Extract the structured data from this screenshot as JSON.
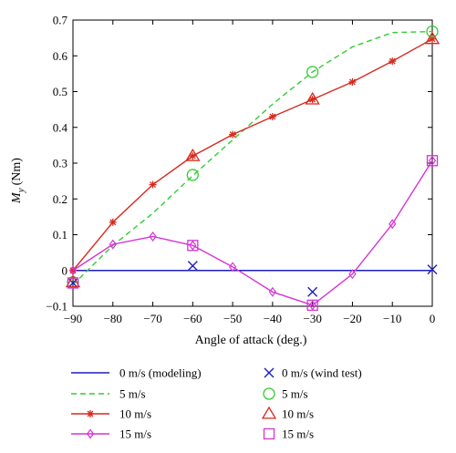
{
  "chart_data": {
    "type": "line",
    "xlabel": "Angle of attack (deg.)",
    "ylabel_main": "M",
    "ylabel_sub": "y",
    "ylabel_unit": "(Nm)",
    "xlim": [
      -90,
      0
    ],
    "ylim": [
      -0.1,
      0.7
    ],
    "xticks": [
      -90,
      -80,
      -70,
      -60,
      -50,
      -40,
      -30,
      -20,
      -10,
      0
    ],
    "yticks": [
      -0.1,
      0,
      0.1,
      0.2,
      0.3,
      0.4,
      0.5,
      0.6,
      0.7
    ],
    "ytick_labels": [
      "−0.1",
      "0",
      "0.1",
      "0.2",
      "0.3",
      "0.4",
      "0.5",
      "0.6",
      "0.7"
    ],
    "xtick_labels": [
      "−90",
      "−80",
      "−70",
      "−60",
      "−50",
      "−40",
      "−30",
      "−20",
      "−10",
      "0"
    ],
    "grid": false,
    "legend_placement": "below",
    "series": [
      {
        "name": "0 m/s (modeling)",
        "kind": "line",
        "style": "solid",
        "marker": "none",
        "color": "#1f1fbf",
        "x": [
          -90,
          -80,
          -70,
          -60,
          -50,
          -40,
          -30,
          -20,
          -10,
          0
        ],
        "y": [
          0,
          0,
          0,
          0,
          0,
          0,
          0,
          0,
          0,
          0
        ]
      },
      {
        "name": "5 m/s",
        "kind": "line",
        "style": "dashed",
        "marker": "none",
        "color": "#33cc33",
        "x": [
          -90,
          -80,
          -70,
          -60,
          -50,
          -40,
          -30,
          -20,
          -10,
          0
        ],
        "y": [
          -0.04,
          0.07,
          0.16,
          0.265,
          0.365,
          0.465,
          0.555,
          0.625,
          0.665,
          0.668
        ]
      },
      {
        "name": "10 m/s",
        "kind": "line",
        "style": "solid",
        "marker": "star",
        "color": "#d62a1e",
        "x": [
          -90,
          -80,
          -70,
          -60,
          -50,
          -40,
          -30,
          -20,
          -10,
          0
        ],
        "y": [
          0,
          0.135,
          0.24,
          0.32,
          0.38,
          0.43,
          0.478,
          0.527,
          0.585,
          0.647
        ]
      },
      {
        "name": "15 m/s",
        "kind": "line",
        "style": "solid",
        "marker": "diamond",
        "color": "#d633d6",
        "x": [
          -90,
          -80,
          -70,
          -60,
          -50,
          -40,
          -30,
          -20,
          -10,
          0
        ],
        "y": [
          0,
          0.073,
          0.095,
          0.07,
          0.01,
          -0.06,
          -0.097,
          -0.01,
          0.13,
          0.307
        ]
      },
      {
        "name": "0 m/s (wind test)",
        "kind": "points",
        "marker": "x",
        "color": "#1f1fbf",
        "x": [
          -90,
          -60,
          -30,
          0
        ],
        "y": [
          -0.035,
          0.013,
          -0.06,
          0.003
        ]
      },
      {
        "name": "5 m/s",
        "kind": "points",
        "marker": "circle",
        "color": "#33cc33",
        "x": [
          -90,
          -60,
          -30,
          0
        ],
        "y": [
          -0.033,
          0.267,
          0.555,
          0.668
        ]
      },
      {
        "name": "10 m/s",
        "kind": "points",
        "marker": "triangle",
        "color": "#d62a1e",
        "x": [
          -90,
          -60,
          -30,
          0
        ],
        "y": [
          -0.033,
          0.32,
          0.478,
          0.647
        ]
      },
      {
        "name": "15 m/s",
        "kind": "points",
        "marker": "square",
        "color": "#d633d6",
        "x": [
          -90,
          -60,
          -30,
          0
        ],
        "y": [
          -0.035,
          0.07,
          -0.097,
          0.307
        ]
      }
    ]
  }
}
